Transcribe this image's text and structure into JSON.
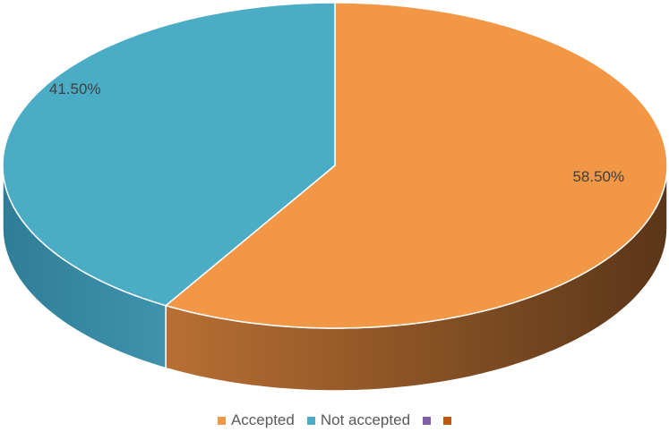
{
  "chart_data": {
    "type": "pie",
    "categories": [
      "Accepted",
      "Not accepted",
      null,
      null
    ],
    "values": [
      58.5,
      41.5,
      0,
      0
    ],
    "value_labels": [
      "58.50%",
      "41.50%",
      null,
      null
    ],
    "colors": [
      "#f29745",
      "#4bacc6",
      "#7f5fa8",
      "#c0580f"
    ],
    "legend": "bottom"
  }
}
